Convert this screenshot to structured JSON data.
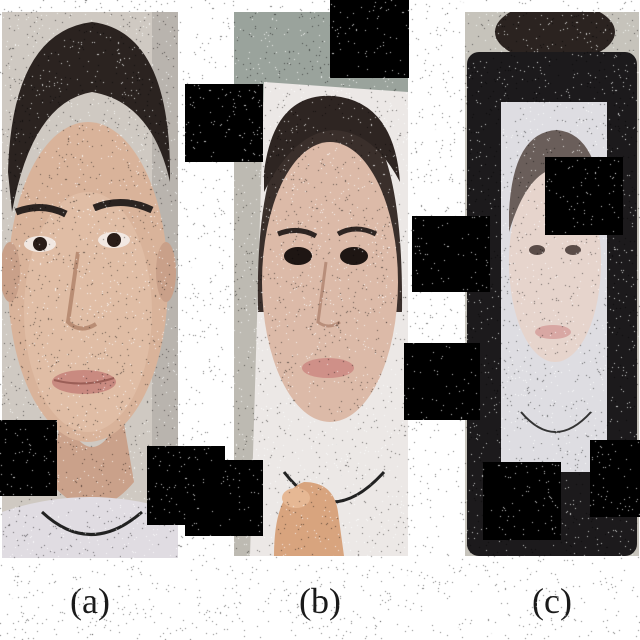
{
  "figure": {
    "panels": [
      {
        "id": "a",
        "label": "(a)",
        "kind": "live face"
      },
      {
        "id": "b",
        "label": "(b)",
        "kind": "printed photo attack"
      },
      {
        "id": "c",
        "label": "(c)",
        "kind": "screen replay attack"
      }
    ],
    "colors": {
      "skin": "#d9b39a",
      "skin_shadow": "#b98d74",
      "hair": "#2b2320",
      "shirt": "#ded9df",
      "wall": "#c9c7c0",
      "paper": "#ece8e6",
      "device": "#1c1a1c",
      "occluder": "#000000"
    }
  }
}
